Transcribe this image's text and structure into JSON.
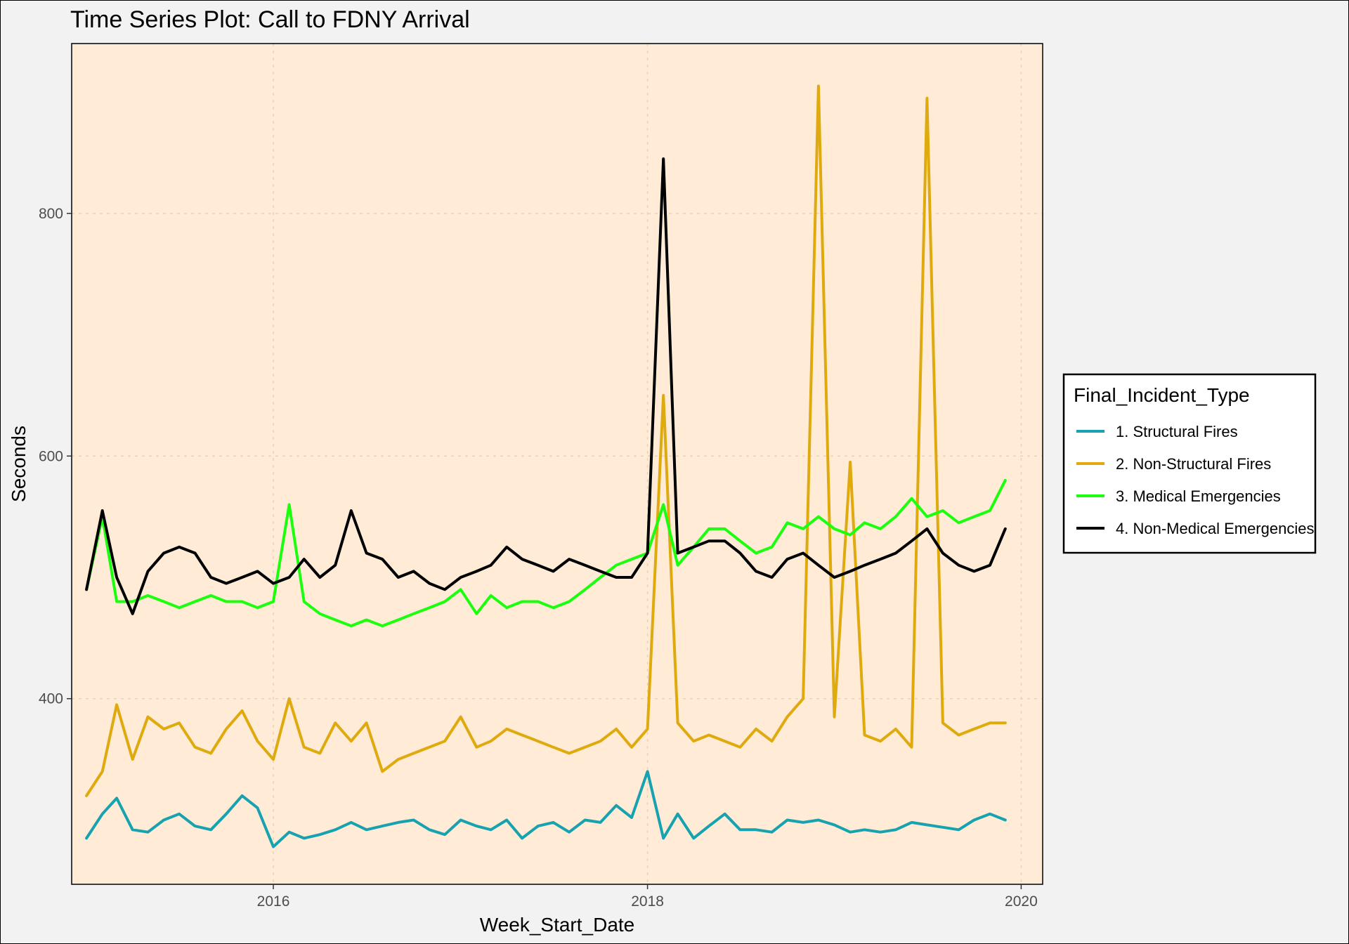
{
  "chart_data": {
    "type": "line",
    "title": "Time Series Plot: Call to FDNY Arrival",
    "xlabel": "Week_Start_Date",
    "ylabel": "Seconds",
    "xlim": [
      "2014-12-03",
      "2020-02-12"
    ],
    "ylim": [
      247,
      940
    ],
    "x_ticks": [
      "2016-01-01",
      "2018-01-01",
      "2020-01-01"
    ],
    "x_tick_labels": [
      "2016",
      "2018",
      "2020"
    ],
    "y_ticks": [
      400,
      600,
      800
    ],
    "y_tick_labels": [
      "400",
      "600",
      "800"
    ],
    "grid": true,
    "legend_position": "right",
    "legend_title": "Final_Incident_Type",
    "background": "#ffebd6",
    "x": [
      "2015-01-01",
      "2015-02-01",
      "2015-03-01",
      "2015-04-01",
      "2015-05-01",
      "2015-06-01",
      "2015-07-01",
      "2015-08-01",
      "2015-09-01",
      "2015-10-01",
      "2015-11-01",
      "2015-12-01",
      "2016-01-01",
      "2016-02-01",
      "2016-03-01",
      "2016-04-01",
      "2016-05-01",
      "2016-06-01",
      "2016-07-01",
      "2016-08-01",
      "2016-09-01",
      "2016-10-01",
      "2016-11-01",
      "2016-12-01",
      "2017-01-01",
      "2017-02-01",
      "2017-03-01",
      "2017-04-01",
      "2017-05-01",
      "2017-06-01",
      "2017-07-01",
      "2017-08-01",
      "2017-09-01",
      "2017-10-01",
      "2017-11-01",
      "2017-12-01",
      "2018-01-01",
      "2018-02-01",
      "2018-03-01",
      "2018-04-01",
      "2018-05-01",
      "2018-06-01",
      "2018-07-01",
      "2018-08-01",
      "2018-09-01",
      "2018-10-01",
      "2018-11-01",
      "2018-12-01",
      "2019-01-01",
      "2019-02-01",
      "2019-03-01",
      "2019-04-01",
      "2019-05-01",
      "2019-06-01",
      "2019-07-01",
      "2019-08-01",
      "2019-09-01",
      "2019-10-01",
      "2019-11-01",
      "2019-12-01"
    ],
    "series": [
      {
        "name": "1. Structural Fires",
        "color": "#17a2b0",
        "values": [
          285,
          305,
          318,
          292,
          290,
          300,
          305,
          295,
          292,
          305,
          320,
          310,
          278,
          290,
          285,
          288,
          292,
          298,
          292,
          295,
          298,
          300,
          292,
          288,
          300,
          295,
          292,
          300,
          285,
          295,
          298,
          290,
          300,
          298,
          312,
          302,
          340,
          285,
          305,
          285,
          295,
          305,
          292,
          292,
          290,
          300,
          298,
          300,
          296,
          290,
          292,
          290,
          292,
          298,
          296,
          294,
          292,
          300,
          305,
          300
        ]
      },
      {
        "name": "2. Non-Structural Fires",
        "color": "#dfaa0d",
        "values": [
          320,
          340,
          395,
          350,
          385,
          375,
          380,
          360,
          355,
          375,
          390,
          365,
          350,
          400,
          360,
          355,
          380,
          365,
          380,
          340,
          350,
          355,
          360,
          365,
          385,
          360,
          365,
          375,
          370,
          365,
          360,
          355,
          360,
          365,
          375,
          360,
          375,
          650,
          380,
          365,
          370,
          365,
          360,
          375,
          365,
          385,
          400,
          905,
          385,
          595,
          370,
          365,
          375,
          360,
          895,
          380,
          370,
          375,
          380,
          380
        ]
      },
      {
        "name": "3. Medical Emergencies",
        "color": "#1bff0f",
        "values": [
          490,
          550,
          480,
          480,
          485,
          480,
          475,
          480,
          485,
          480,
          480,
          475,
          480,
          560,
          480,
          470,
          465,
          460,
          465,
          460,
          465,
          470,
          475,
          480,
          490,
          470,
          485,
          475,
          480,
          480,
          475,
          480,
          490,
          500,
          510,
          515,
          520,
          560,
          510,
          525,
          540,
          540,
          530,
          520,
          525,
          545,
          540,
          550,
          540,
          535,
          545,
          540,
          550,
          565,
          550,
          555,
          545,
          550,
          555,
          580
        ]
      },
      {
        "name": "4. Non-Medical Emergencies",
        "color": "#000000",
        "values": [
          490,
          555,
          500,
          470,
          505,
          520,
          525,
          520,
          500,
          495,
          500,
          505,
          495,
          500,
          515,
          500,
          510,
          555,
          520,
          515,
          500,
          505,
          495,
          490,
          500,
          505,
          510,
          525,
          515,
          510,
          505,
          515,
          510,
          505,
          500,
          500,
          520,
          845,
          520,
          525,
          530,
          530,
          520,
          505,
          500,
          515,
          520,
          510,
          500,
          505,
          510,
          515,
          520,
          530,
          540,
          520,
          510,
          505,
          510,
          540
        ]
      }
    ]
  }
}
